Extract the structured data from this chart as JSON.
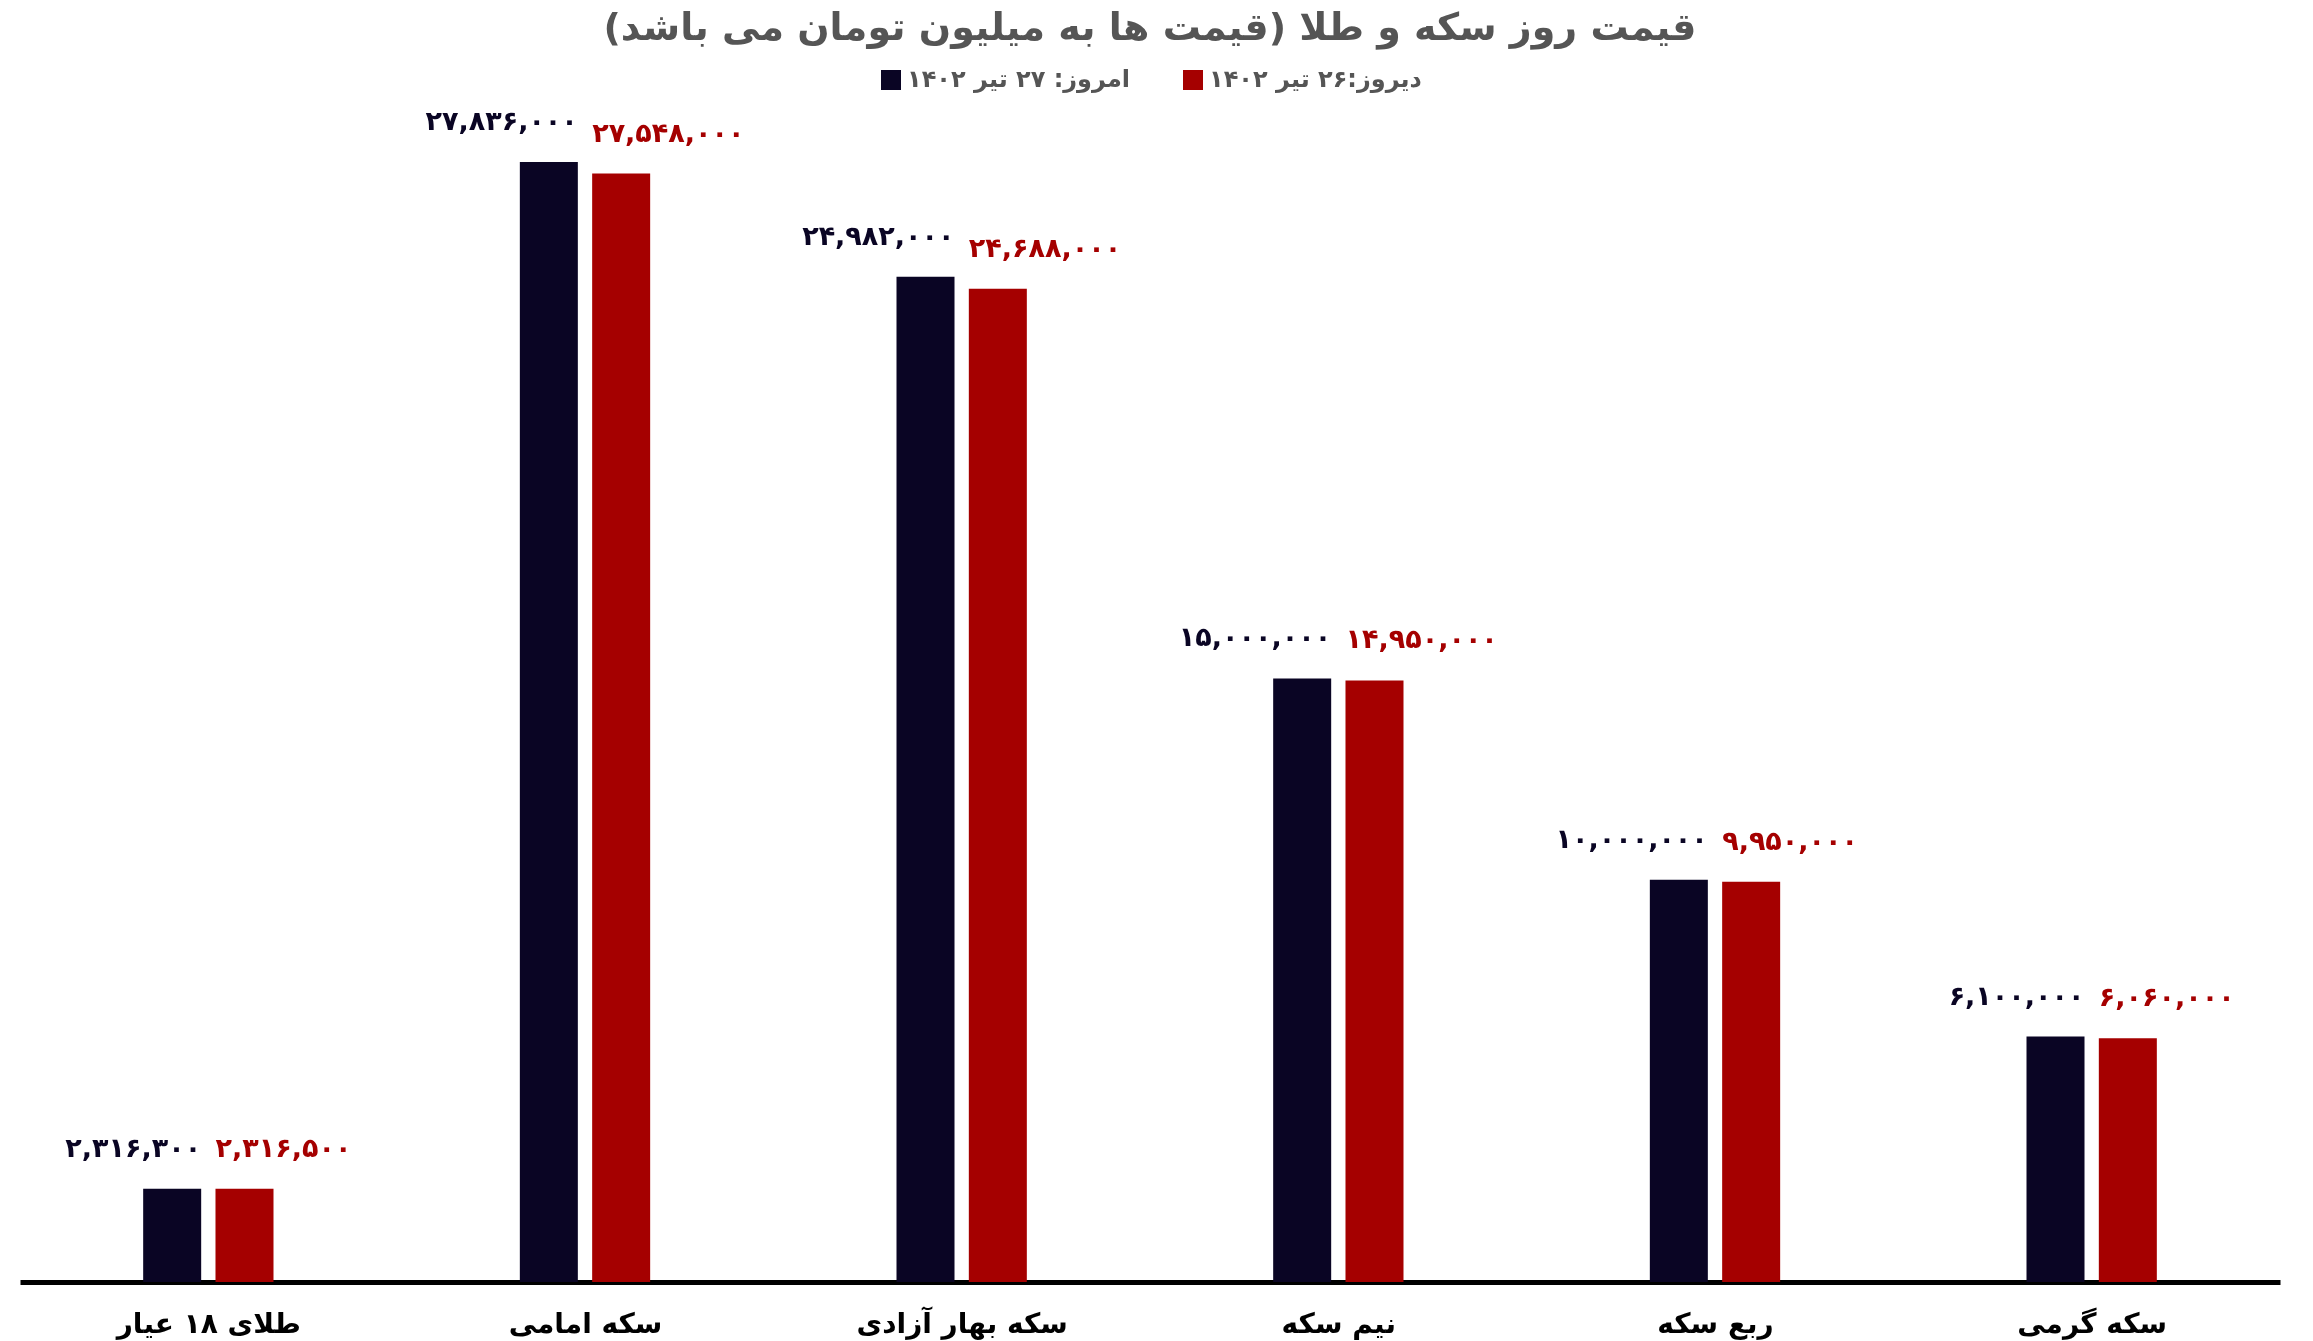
{
  "chart_data": {
    "type": "bar",
    "title": "قیمت روز سکه و طلا (قیمت ها به میلیون تومان می باشد)",
    "categories": [
      "طلای ۱۸ عیار",
      "سکه امامی",
      "سکه بهار آزادی",
      "نیم سکه",
      "ربع سکه",
      "سکه گرمی"
    ],
    "series": [
      {
        "name": "امروز: ۲۷ تیر ۱۴۰۲",
        "color": "#0a0524",
        "values": [
          2316300,
          27836000,
          24982000,
          15000000,
          10000000,
          6100000
        ],
        "value_labels": [
          "۲,۳۱۶,۳۰۰",
          "۲۷,۸۳۶,۰۰۰",
          "۲۴,۹۸۲,۰۰۰",
          "۱۵,۰۰۰,۰۰۰",
          "۱۰,۰۰۰,۰۰۰",
          "۶,۱۰۰,۰۰۰"
        ]
      },
      {
        "name": "دیروز:۲۶ تیر ۱۴۰۲",
        "color": "#a50000",
        "values": [
          2316500,
          27548000,
          24688000,
          14950000,
          9950000,
          6060000
        ],
        "value_labels": [
          "۲,۳۱۶,۵۰۰",
          "۲۷,۵۴۸,۰۰۰",
          "۲۴,۶۸۸,۰۰۰",
          "۱۴,۹۵۰,۰۰۰",
          "۹,۹۵۰,۰۰۰",
          "۶,۰۶۰,۰۰۰"
        ]
      }
    ],
    "grid": false,
    "legend": "top"
  }
}
